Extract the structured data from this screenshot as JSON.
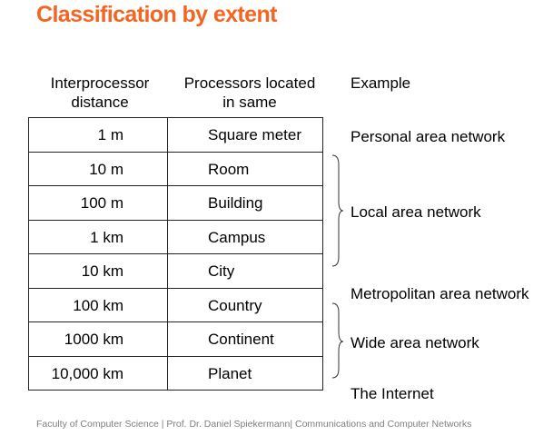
{
  "title": "Classification by extent",
  "headers": {
    "distance": "Interprocessor distance",
    "located": "Processors located in same",
    "example": "Example"
  },
  "rows": [
    {
      "distance": "1 m",
      "located": "Square meter"
    },
    {
      "distance": "10 m",
      "located": "Room"
    },
    {
      "distance": "100 m",
      "located": "Building"
    },
    {
      "distance": "1 km",
      "located": "Campus"
    },
    {
      "distance": "10 km",
      "located": "City"
    },
    {
      "distance": "100 km",
      "located": "Country"
    },
    {
      "distance": "1000 km",
      "located": "Continent"
    },
    {
      "distance": "10,000 km",
      "located": "Planet"
    }
  ],
  "examples": {
    "pan": "Personal area network",
    "lan": "Local area network",
    "man": "Metropolitan area network",
    "wan": "Wide area network",
    "internet": "The Internet"
  },
  "footer": "Faculty of Computer Science | Prof. Dr. Daniel Spiekermann| Communications and Computer Networks",
  "colors": {
    "title": "#f26522",
    "footer": "#7f7f7f"
  }
}
